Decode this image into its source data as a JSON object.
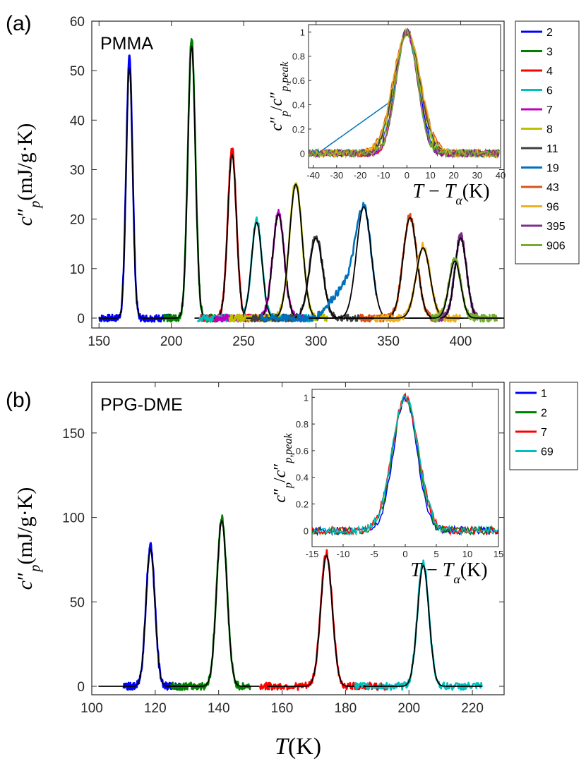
{
  "figure": {
    "panel_a_label": "(a)",
    "panel_b_label": "(b)"
  },
  "chart_data": [
    {
      "type": "line",
      "panel": "(a)",
      "title": "PMMA",
      "xlabel": "T (K)",
      "ylabel": "c″p (mJ/g·K)",
      "xlim": [
        145,
        430
      ],
      "ylim": [
        -2,
        60
      ],
      "xticks": [
        "150",
        "200",
        "250",
        "300",
        "350",
        "400"
      ],
      "yticks": [
        "0",
        "10",
        "20",
        "30",
        "40",
        "50",
        "60"
      ],
      "legend_position": "right-outside",
      "series": [
        {
          "name": "2",
          "color": "#0000ff",
          "peak_T": 171,
          "peak": 52.5,
          "width": 2.2,
          "fit": 50.5,
          "range": [
            150,
            200
          ]
        },
        {
          "name": "3",
          "color": "#008000",
          "peak_T": 214,
          "peak": 56.3,
          "width": 2.6,
          "fit": 55.0,
          "range": [
            195,
            232
          ]
        },
        {
          "name": "4",
          "color": "#ff0000",
          "peak_T": 242,
          "peak": 34.2,
          "width": 3.0,
          "fit": 33.0,
          "range": [
            220,
            262
          ]
        },
        {
          "name": "6",
          "color": "#00bfbf",
          "peak_T": 259,
          "peak": 19.8,
          "width": 3.6,
          "fit": 19.3,
          "range": [
            218,
            300
          ]
        },
        {
          "name": "7",
          "color": "#bf00bf",
          "peak_T": 274,
          "peak": 21.2,
          "width": 4.0,
          "fit": 21.0,
          "range": [
            230,
            292
          ]
        },
        {
          "name": "8",
          "color": "#bfbf00",
          "peak_T": 286,
          "peak": 27.3,
          "width": 4.4,
          "fit": 27.0,
          "range": [
            240,
            308
          ]
        },
        {
          "name": "11",
          "color": "#404040",
          "peak_T": 300,
          "peak": 16.7,
          "width": 4.6,
          "fit": 16.2,
          "range": [
            255,
            330
          ]
        },
        {
          "name": "19",
          "color": "#0072bd",
          "peak_T": 333,
          "peak": 22.8,
          "width": 5.0,
          "fit": 22.5,
          "range": [
            262,
            342
          ]
        },
        {
          "name": "43",
          "color": "#d95319",
          "peak_T": 365,
          "peak": 20.6,
          "width": 4.8,
          "fit": 20.3,
          "range": [
            330,
            382
          ]
        },
        {
          "name": "96",
          "color": "#edb120",
          "peak_T": 374,
          "peak": 14.6,
          "width": 4.8,
          "fit": 14.2,
          "range": [
            340,
            400
          ]
        },
        {
          "name": "395",
          "color": "#7e2f8e",
          "peak_T": 400,
          "peak": 16.6,
          "width": 4.0,
          "fit": 16.2,
          "range": [
            382,
            412
          ]
        },
        {
          "name": "906",
          "color": "#77ac30",
          "peak_T": 396,
          "peak": 12.0,
          "width": 4.0,
          "fit": 11.5,
          "range": [
            380,
            425
          ]
        }
      ],
      "inset": {
        "xlabel": "T − Tα (K)",
        "ylabel": "c″p / c″p,peak",
        "xlim": [
          -42,
          40
        ],
        "ylim": [
          -0.12,
          1.06
        ],
        "xticks": [
          "-40",
          "-30",
          "-20",
          "-10",
          "0",
          "10",
          "20",
          "30",
          "40"
        ],
        "yticks": [
          "0",
          "0.2",
          "0.4",
          "0.6",
          "0.8",
          "1"
        ]
      }
    },
    {
      "type": "line",
      "panel": "(b)",
      "title": "PPG-DME",
      "xlabel": "T (K)",
      "ylabel": "c″p (mJ/g·K)",
      "xlim": [
        100,
        230
      ],
      "ylim": [
        -5,
        180
      ],
      "xticks": [
        "100",
        "120",
        "140",
        "160",
        "180",
        "200",
        "220"
      ],
      "yticks": [
        "0",
        "50",
        "100",
        "150"
      ],
      "legend_position": "right-outside",
      "series": [
        {
          "name": "1",
          "color": "#0000ff",
          "peak_T": 118.5,
          "peak": 83.5,
          "width": 1.4,
          "fit": 81.0,
          "range": [
            110,
            128
          ]
        },
        {
          "name": "2",
          "color": "#008000",
          "peak_T": 141,
          "peak": 100,
          "width": 1.6,
          "fit": 98.0,
          "range": [
            125,
            150
          ]
        },
        {
          "name": "7",
          "color": "#ff0000",
          "peak_T": 174,
          "peak": 79,
          "width": 1.8,
          "fit": 77.5,
          "range": [
            153,
            193
          ]
        },
        {
          "name": "69",
          "color": "#00bfbf",
          "peak_T": 204.5,
          "peak": 73,
          "width": 1.8,
          "fit": 71.5,
          "range": [
            183,
            223
          ]
        }
      ],
      "inset": {
        "xlabel": "T − Tα (K)",
        "ylabel": "c″p / c″p,peak",
        "xlim": [
          -15,
          15
        ],
        "ylim": [
          -0.12,
          1.06
        ],
        "xticks": [
          "-15",
          "-10",
          "-5",
          "0",
          "5",
          "10",
          "15"
        ],
        "yticks": [
          "0",
          "0.2",
          "0.4",
          "0.6",
          "0.8",
          "1"
        ]
      }
    }
  ]
}
